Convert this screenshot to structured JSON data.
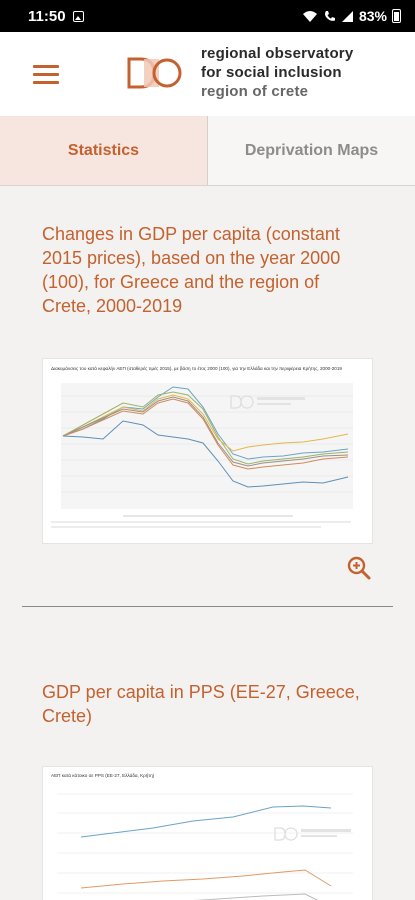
{
  "status_bar": {
    "time": "11:50",
    "battery": "83%"
  },
  "header": {
    "brand_line1": "regional observatory",
    "brand_line2": "for social inclusion",
    "brand_line3": "region of crete",
    "brand_color": "#c4612e"
  },
  "tabs": [
    {
      "label": "Statistics",
      "active": true
    },
    {
      "label": "Deprivation Maps",
      "active": false
    }
  ],
  "sections": [
    {
      "title": "Changes in GDP per capita (constant 2015 prices), based on the year 2000 (100), for Greece and the region of Crete, 2000-2019",
      "chart_image_title": "Διακυμάνσεις του κατά κεφαλήν ΑΕΠ (σταθερές τιμές 2015), με βάση το έτος 2000 (100), για την Ελλάδα και την περιφέρεια Κρήτης, 2000-2019"
    },
    {
      "title": "GDP per capita in PPS (EE-27, Greece, Crete)",
      "chart_image_title": "ΑΕΠ κατά κάτοικο σε PPS (ΕΕ-27, Ελλάδα, Κρήτη)"
    }
  ]
}
